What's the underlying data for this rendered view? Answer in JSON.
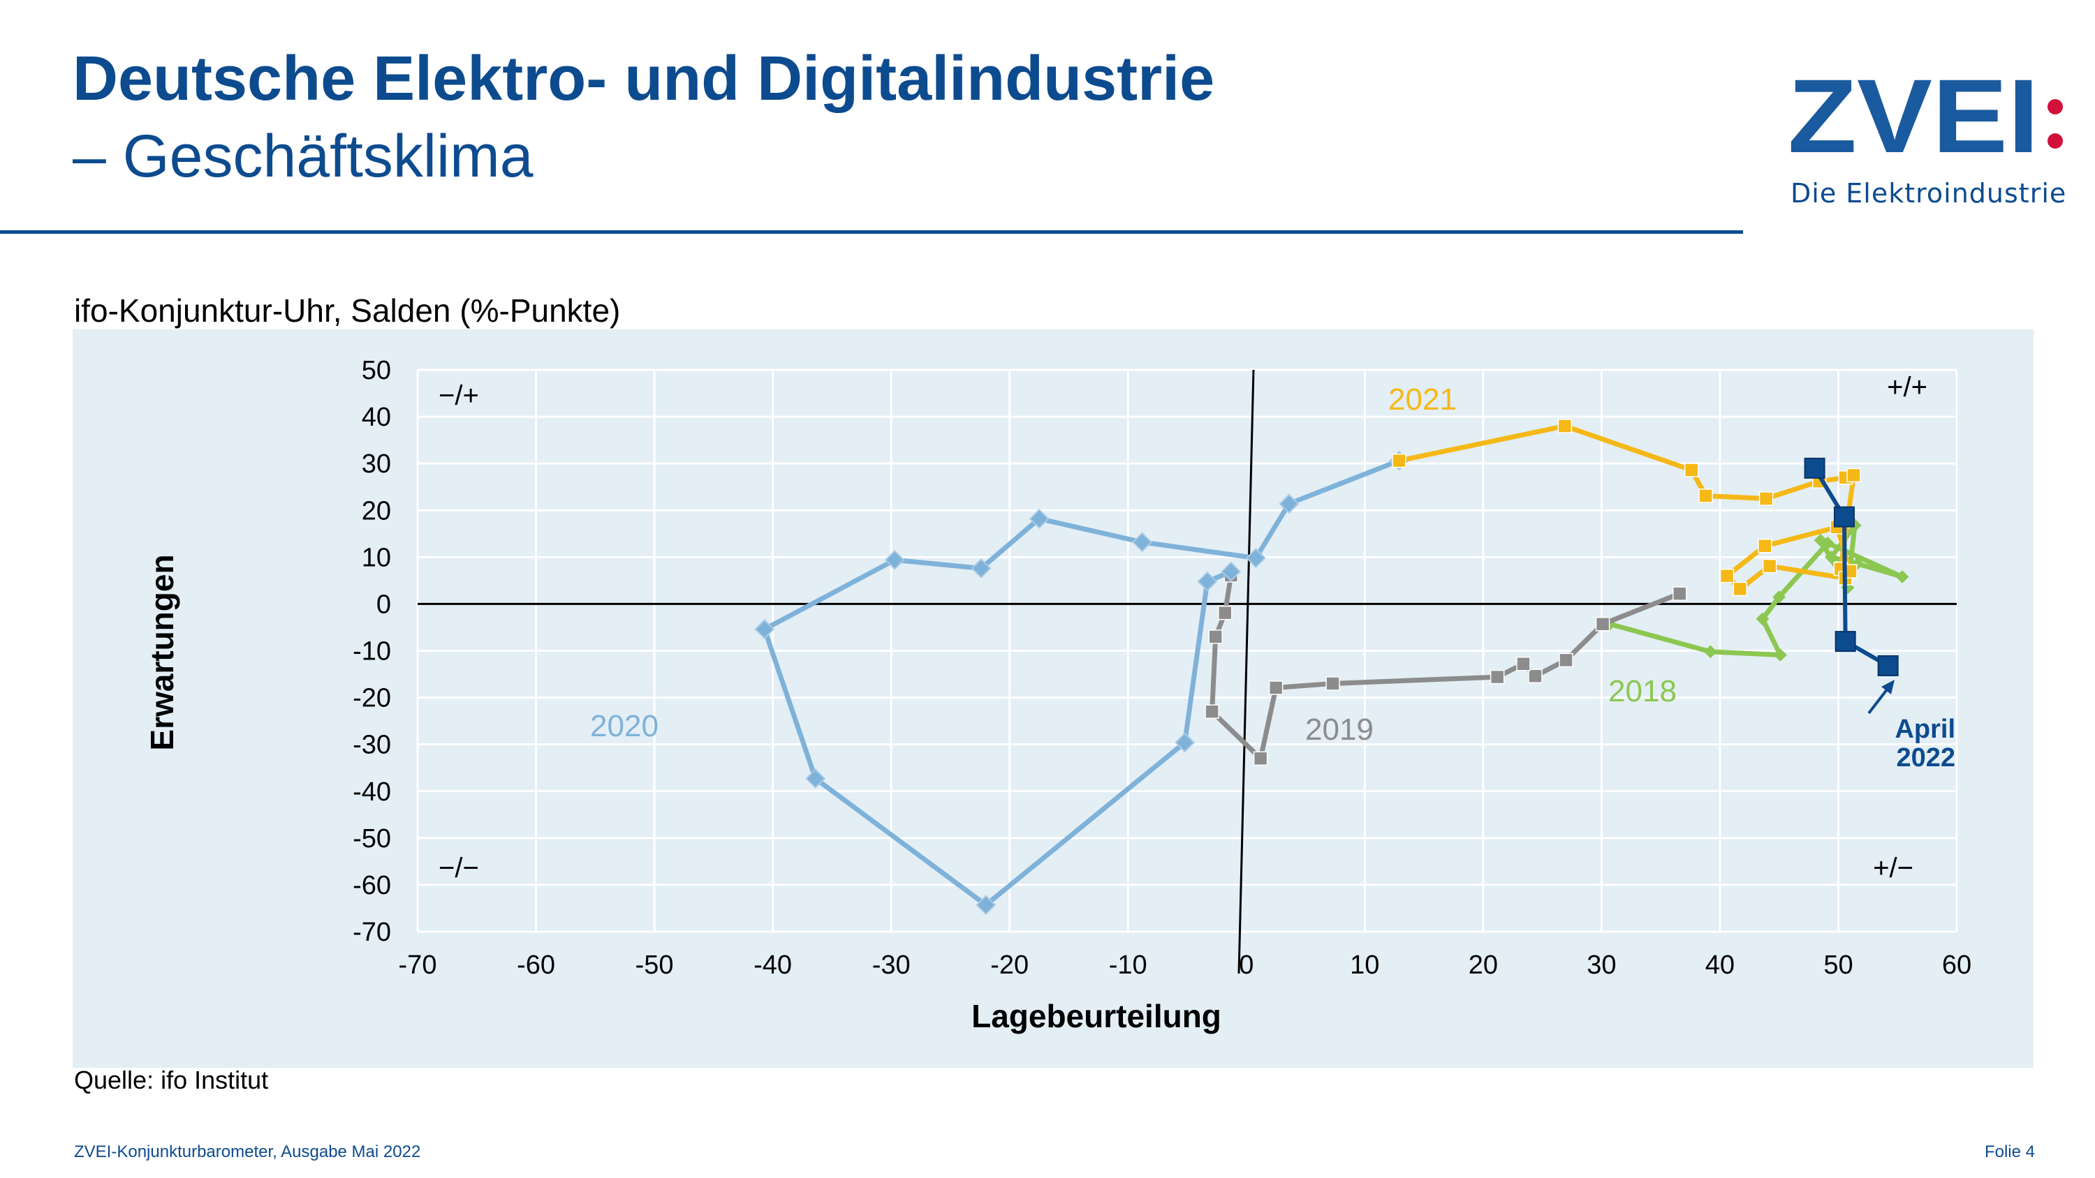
{
  "header": {
    "title": "Deutsche Elektro- und Digitalindustrie",
    "subtitle": "– Geschäftsklima"
  },
  "logo": {
    "text": "ZVEI",
    "tagline": "Die Elektroindustrie",
    "colors": {
      "blue": "#1a5a9e",
      "red": "#d3103a"
    }
  },
  "chart_subtitle": "ifo-Konjunktur-Uhr, Salden (%-Punkte)",
  "source": "Quelle: ifo Institut",
  "footer": {
    "left": "ZVEI-Konjunkturbarometer, Ausgabe Mai 2022",
    "right": "Folie 4"
  },
  "chart_data": {
    "type": "line",
    "xlabel": "Lagebeurteilung",
    "ylabel": "Erwartungen",
    "xlim": [
      -70,
      60
    ],
    "ylim": [
      -70,
      50
    ],
    "xticks": [
      "-70",
      "-60",
      "-50",
      "-40",
      "-30",
      "-20",
      "-10",
      "0",
      "10",
      "20",
      "30",
      "40",
      "50",
      "60"
    ],
    "yticks": [
      "50",
      "40",
      "30",
      "20",
      "10",
      "0",
      "-10",
      "-20",
      "-30",
      "-40",
      "-50",
      "-60",
      "-70"
    ],
    "grid": true,
    "quadrants": {
      "top_left": "−/+",
      "top_right": "+/+",
      "bottom_left": "−/−",
      "bottom_right": "+/−"
    },
    "series": [
      {
        "name": "2018",
        "color": "#8cc751",
        "marker": "diamond-small",
        "points": [
          [
            30.7,
            -4.3
          ],
          [
            39.2,
            -10.2
          ],
          [
            45.1,
            -10.9
          ],
          [
            43.6,
            -3.2
          ],
          [
            45.0,
            1.5
          ],
          [
            49.1,
            13.0
          ],
          [
            55.4,
            5.8
          ],
          [
            51.6,
            8.6
          ],
          [
            49.4,
            10.0
          ],
          [
            51.4,
            16.8
          ],
          [
            50.8,
            3.5
          ],
          [
            48.5,
            13.6
          ]
        ]
      },
      {
        "name": "2019",
        "color": "#8c8c8c",
        "marker": "square",
        "points": [
          [
            36.6,
            2.2
          ],
          [
            30.1,
            -4.3
          ],
          [
            27.0,
            -12.0
          ],
          [
            24.4,
            -15.4
          ],
          [
            23.4,
            -12.8
          ],
          [
            21.2,
            -15.6
          ],
          [
            7.3,
            -17.0
          ],
          [
            2.5,
            -17.9
          ],
          [
            1.2,
            -33.0
          ],
          [
            -2.9,
            -23.0
          ],
          [
            -2.6,
            -7.0
          ],
          [
            -1.8,
            -1.9
          ],
          [
            -1.3,
            6.1
          ]
        ]
      },
      {
        "name": "2020",
        "color": "#7fb2d9",
        "marker": "diamond",
        "points": [
          [
            -1.3,
            6.9
          ],
          [
            -3.3,
            4.8
          ],
          [
            -5.2,
            -29.6
          ],
          [
            -22.0,
            -64.3
          ],
          [
            -36.4,
            -37.3
          ],
          [
            -40.7,
            -5.4
          ],
          [
            -29.7,
            9.4
          ],
          [
            -22.4,
            7.6
          ],
          [
            -17.5,
            18.2
          ],
          [
            -8.8,
            13.2
          ],
          [
            0.8,
            9.8
          ],
          [
            3.6,
            21.4
          ],
          [
            12.9,
            30.6
          ]
        ]
      },
      {
        "name": "2021",
        "color": "#f5b816",
        "marker": "square",
        "points": [
          [
            12.9,
            30.6
          ],
          [
            26.9,
            38.0
          ],
          [
            37.6,
            28.6
          ],
          [
            38.8,
            23.1
          ],
          [
            43.9,
            22.5
          ],
          [
            48.4,
            26.2
          ],
          [
            50.6,
            27.0
          ],
          [
            51.3,
            27.5
          ],
          [
            50.2,
            7.5
          ],
          [
            50.6,
            5.5
          ],
          [
            44.2,
            8.1
          ],
          [
            41.7,
            3.2
          ],
          [
            40.6,
            6.0
          ],
          [
            43.8,
            12.4
          ],
          [
            49.9,
            16.4
          ],
          [
            51.0,
            7.0
          ]
        ]
      },
      {
        "name": "2022",
        "color": "#0d4b8f",
        "marker": "square-large",
        "points": [
          [
            48.0,
            29.0
          ],
          [
            50.5,
            18.6
          ],
          [
            50.6,
            -8.0
          ],
          [
            54.2,
            -13.2
          ]
        ]
      }
    ],
    "series_labels": [
      {
        "text": "2018",
        "color": "#8cc751"
      },
      {
        "text": "2019",
        "color": "#8c8c8c"
      },
      {
        "text": "2020",
        "color": "#7fb2d9"
      },
      {
        "text": "2021",
        "color": "#f5b816"
      }
    ],
    "annotation": {
      "line1": "April",
      "line2": "2022",
      "color": "#0d4b8f"
    }
  }
}
